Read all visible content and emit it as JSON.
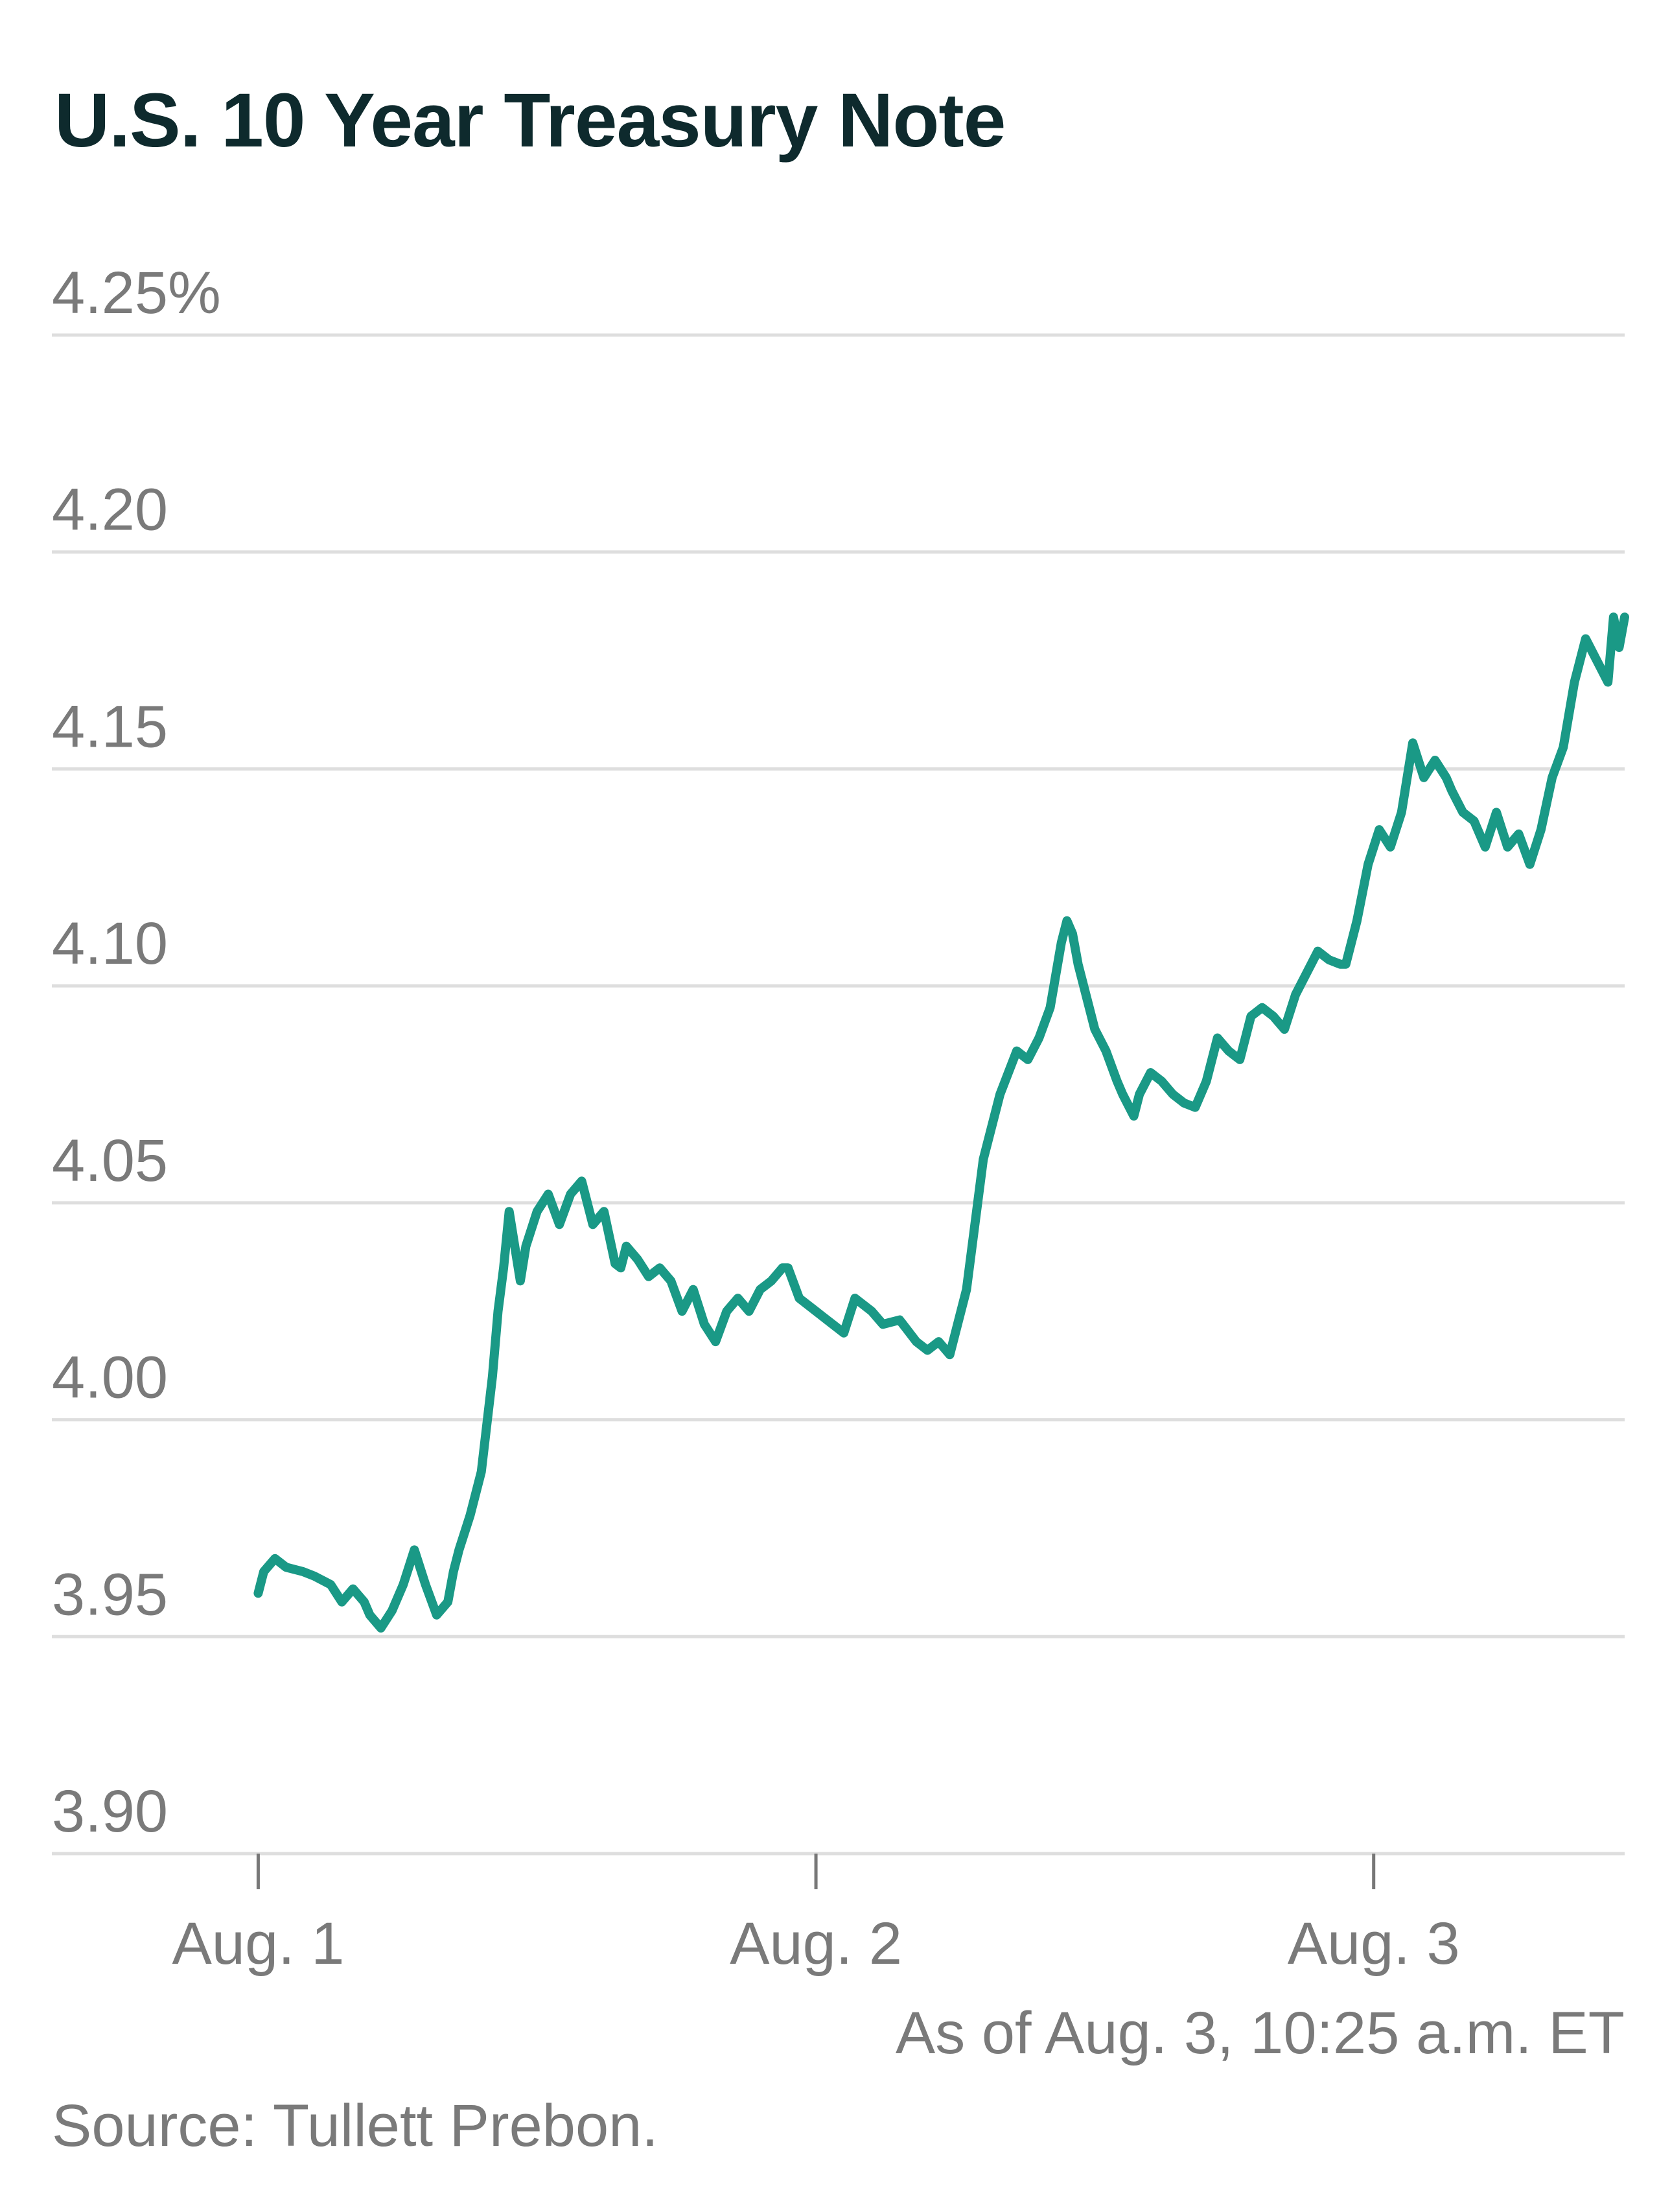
{
  "chart_data": {
    "type": "line",
    "title": "U.S. 10 Year Treasury Note",
    "ylim": [
      3.9,
      4.25
    ],
    "y_ticks": [
      {
        "value": 4.25,
        "label": "4.25%"
      },
      {
        "value": 4.2,
        "label": "4.20"
      },
      {
        "value": 4.15,
        "label": "4.15"
      },
      {
        "value": 4.1,
        "label": "4.10"
      },
      {
        "value": 4.05,
        "label": "4.05"
      },
      {
        "value": 4.0,
        "label": "4.00"
      },
      {
        "value": 3.95,
        "label": "3.95"
      },
      {
        "value": 3.9,
        "label": "3.90"
      }
    ],
    "xlim": [
      0.63,
      3.45
    ],
    "x_ticks": [
      {
        "value": 1,
        "label": "Aug. 1"
      },
      {
        "value": 2,
        "label": "Aug. 2"
      },
      {
        "value": 3,
        "label": "Aug. 3"
      }
    ],
    "grid": true,
    "line_color": "#1a9986",
    "series": [
      {
        "x": [
          1.0,
          1.01,
          1.03,
          1.05,
          1.08,
          1.1,
          1.13,
          1.15,
          1.17,
          1.19,
          1.2,
          1.22,
          1.24,
          1.26,
          1.28,
          1.3,
          1.32,
          1.34,
          1.35,
          1.36,
          1.38,
          1.4,
          1.42,
          1.43,
          1.44,
          1.45,
          1.46,
          1.47,
          1.48,
          1.5,
          1.52,
          1.54,
          1.56,
          1.58,
          1.6,
          1.62,
          1.64,
          1.65,
          1.66,
          1.68,
          1.7,
          1.72,
          1.74,
          1.76,
          1.78,
          1.8,
          1.82,
          1.84,
          1.86,
          1.88,
          1.9,
          1.92,
          1.94,
          1.95,
          1.97,
          2.0,
          2.03,
          2.05,
          2.07,
          2.1,
          2.12,
          2.15,
          2.18,
          2.2,
          2.22,
          2.24,
          2.27,
          2.3,
          2.33,
          2.36,
          2.38,
          2.4,
          2.42,
          2.44,
          2.45,
          2.46,
          2.47,
          2.49,
          2.5,
          2.52,
          2.54,
          2.55,
          2.57,
          2.58,
          2.6,
          2.62,
          2.64,
          2.66,
          2.68,
          2.7,
          2.72,
          2.74,
          2.76,
          2.78,
          2.8,
          2.82,
          2.84,
          2.86,
          2.88,
          2.9,
          2.92,
          2.94,
          2.95,
          2.97,
          2.99,
          3.01,
          3.03,
          3.05,
          3.07,
          3.09,
          3.11,
          3.13,
          3.14,
          3.16,
          3.18,
          3.2,
          3.22,
          3.24,
          3.26,
          3.28,
          3.3,
          3.32,
          3.34,
          3.36,
          3.38,
          3.4,
          3.42,
          3.43,
          3.44,
          3.45
        ],
        "y": [
          3.96,
          3.965,
          3.968,
          3.966,
          3.965,
          3.964,
          3.962,
          3.958,
          3.961,
          3.958,
          3.955,
          3.952,
          3.956,
          3.962,
          3.97,
          3.962,
          3.955,
          3.958,
          3.965,
          3.97,
          3.978,
          3.988,
          4.01,
          4.025,
          4.035,
          4.048,
          4.04,
          4.032,
          4.04,
          4.048,
          4.052,
          4.045,
          4.052,
          4.055,
          4.045,
          4.048,
          4.036,
          4.035,
          4.04,
          4.037,
          4.033,
          4.035,
          4.032,
          4.025,
          4.03,
          4.022,
          4.018,
          4.025,
          4.028,
          4.025,
          4.03,
          4.032,
          4.035,
          4.035,
          4.028,
          4.025,
          4.022,
          4.02,
          4.028,
          4.025,
          4.022,
          4.023,
          4.018,
          4.016,
          4.018,
          4.015,
          4.03,
          4.06,
          4.075,
          4.085,
          4.083,
          4.088,
          4.095,
          4.11,
          4.115,
          4.112,
          4.105,
          4.095,
          4.09,
          4.085,
          4.078,
          4.075,
          4.07,
          4.075,
          4.08,
          4.078,
          4.075,
          4.073,
          4.072,
          4.078,
          4.088,
          4.085,
          4.083,
          4.093,
          4.095,
          4.093,
          4.09,
          4.098,
          4.103,
          4.108,
          4.106,
          4.105,
          4.105,
          4.115,
          4.128,
          4.136,
          4.132,
          4.14,
          4.156,
          4.148,
          4.152,
          4.148,
          4.145,
          4.14,
          4.138,
          4.132,
          4.14,
          4.132,
          4.135,
          4.128,
          4.136,
          4.148,
          4.155,
          4.17,
          4.18,
          4.175,
          4.17,
          4.185,
          4.178,
          4.185
        ]
      }
    ],
    "as_of": "As of Aug. 3, 10:25 a.m. ET",
    "source": "Source: Tullett Prebon."
  }
}
